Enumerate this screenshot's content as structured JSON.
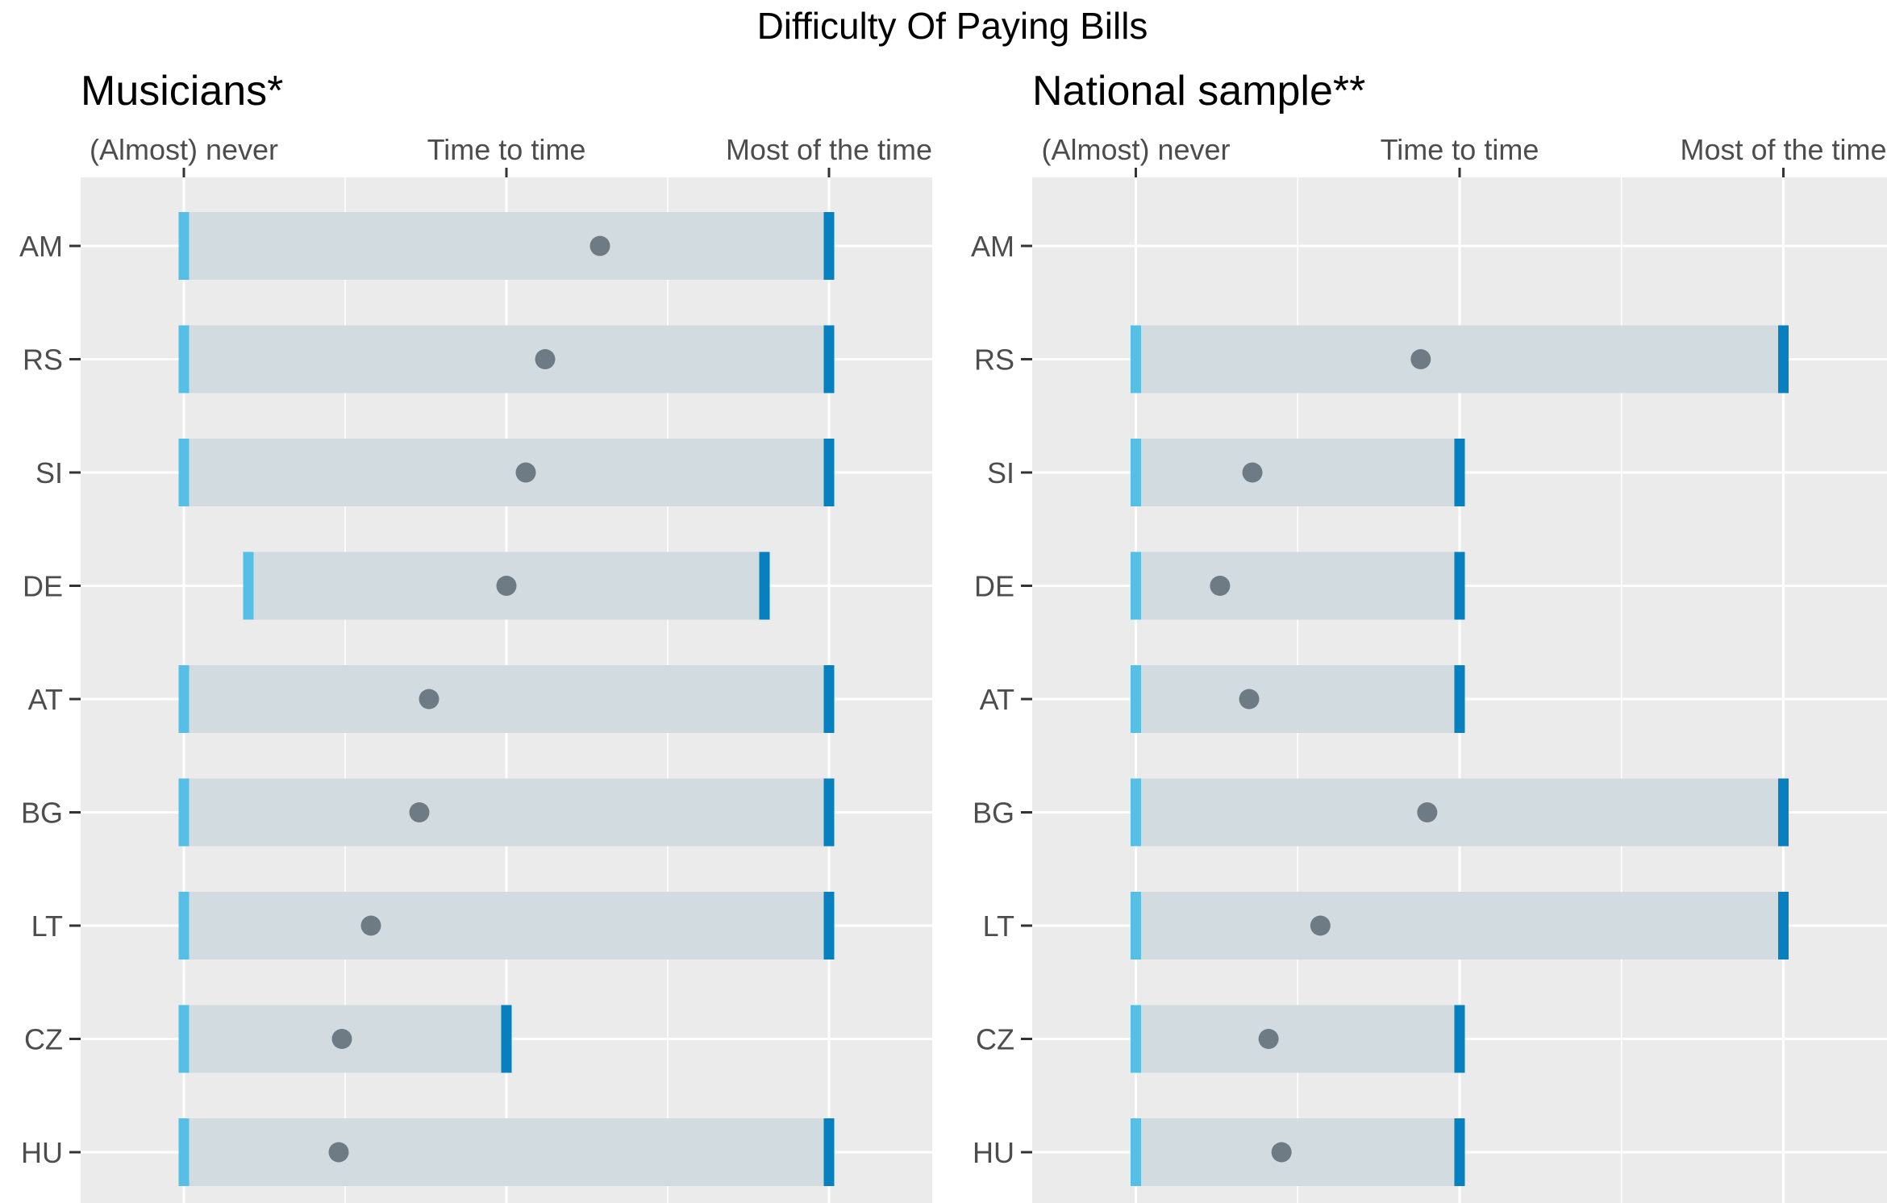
{
  "chart_data": {
    "type": "range-dot",
    "title": "Difficulty Of Paying Bills",
    "scale_levels": [
      "(Almost) never",
      "Time to time",
      "Most of the time"
    ],
    "x_tick_labels": [
      "(Almost) never",
      "Time to time",
      "Most of the time"
    ],
    "xlim": [
      0.68,
      3.32
    ],
    "grid": true,
    "legend": "none",
    "colors": {
      "panel_background": "#EBEBEB",
      "gridline": "#FFFFFF",
      "range_bar": "#D1DBE0",
      "min_marker": "#56BFE5",
      "max_marker": "#0680BF",
      "point": "#6E7B84",
      "axis_text": "#4D4D4D",
      "title_text": "#000000"
    },
    "categories": [
      "AM",
      "RS",
      "SI",
      "DE",
      "AT",
      "BG",
      "LT",
      "CZ",
      "HU"
    ],
    "panels": [
      {
        "title": "Musicians*",
        "rows": [
          {
            "country": "AM",
            "min": 1.0,
            "mean": 2.29,
            "max": 3.0
          },
          {
            "country": "RS",
            "min": 1.0,
            "mean": 2.12,
            "max": 3.0
          },
          {
            "country": "SI",
            "min": 1.0,
            "mean": 2.06,
            "max": 3.0
          },
          {
            "country": "DE",
            "min": 1.2,
            "mean": 2.0,
            "max": 2.8
          },
          {
            "country": "AT",
            "min": 1.0,
            "mean": 1.76,
            "max": 3.0
          },
          {
            "country": "BG",
            "min": 1.0,
            "mean": 1.73,
            "max": 3.0
          },
          {
            "country": "LT",
            "min": 1.0,
            "mean": 1.58,
            "max": 3.0
          },
          {
            "country": "CZ",
            "min": 1.0,
            "mean": 1.49,
            "max": 2.0
          },
          {
            "country": "HU",
            "min": 1.0,
            "mean": 1.48,
            "max": 3.0
          }
        ]
      },
      {
        "title": "National sample**",
        "rows": [
          {
            "country": "AM",
            "min": null,
            "mean": null,
            "max": null
          },
          {
            "country": "RS",
            "min": 1.0,
            "mean": 1.88,
            "max": 3.0
          },
          {
            "country": "SI",
            "min": 1.0,
            "mean": 1.36,
            "max": 2.0
          },
          {
            "country": "DE",
            "min": 1.0,
            "mean": 1.26,
            "max": 2.0
          },
          {
            "country": "AT",
            "min": 1.0,
            "mean": 1.35,
            "max": 2.0
          },
          {
            "country": "BG",
            "min": 1.0,
            "mean": 1.9,
            "max": 3.0
          },
          {
            "country": "LT",
            "min": 1.0,
            "mean": 1.57,
            "max": 3.0
          },
          {
            "country": "CZ",
            "min": 1.0,
            "mean": 1.41,
            "max": 2.0
          },
          {
            "country": "HU",
            "min": 1.0,
            "mean": 1.45,
            "max": 2.0
          }
        ]
      }
    ]
  }
}
